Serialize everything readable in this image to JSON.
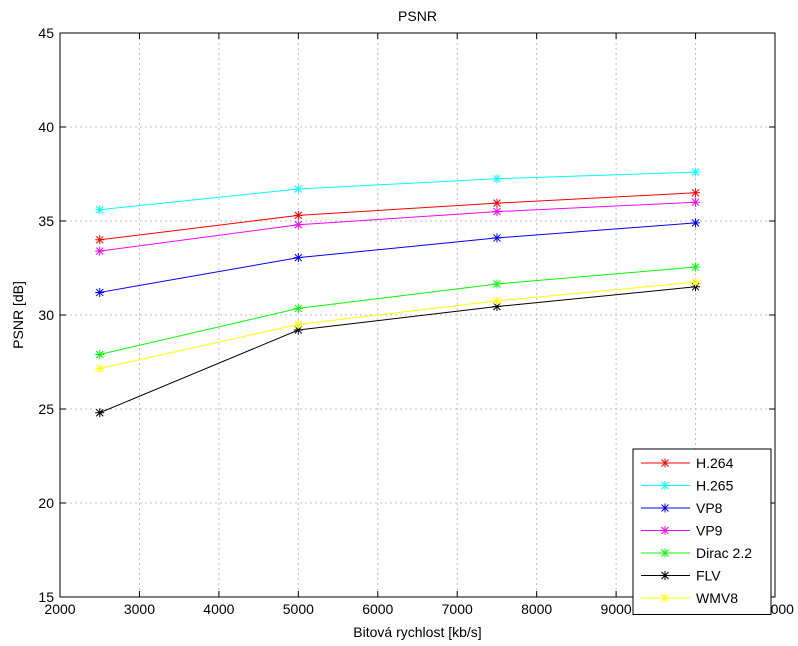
{
  "chart_data": {
    "type": "line",
    "title": "PSNR",
    "xlabel": "Bitová rychlost [kb/s]",
    "ylabel": "PSNR [dB]",
    "xlim": [
      2000,
      11000
    ],
    "ylim": [
      15,
      45
    ],
    "xticks": [
      2000,
      3000,
      4000,
      5000,
      6000,
      7000,
      8000,
      9000,
      10000,
      11000
    ],
    "yticks": [
      15,
      20,
      25,
      30,
      35,
      40,
      45
    ],
    "grid": true,
    "legend_position": "bottom-right",
    "x": [
      2500,
      5000,
      7500,
      10000
    ],
    "series": [
      {
        "name": "H.264",
        "color": "#ff0000",
        "values": [
          34.0,
          35.3,
          35.95,
          36.5
        ]
      },
      {
        "name": "H.265",
        "color": "#00ffff",
        "values": [
          35.6,
          36.7,
          37.25,
          37.6
        ]
      },
      {
        "name": "VP8",
        "color": "#0000ff",
        "values": [
          31.2,
          33.05,
          34.1,
          34.9
        ]
      },
      {
        "name": "VP9",
        "color": "#ff00ff",
        "values": [
          33.4,
          34.8,
          35.5,
          36.0
        ]
      },
      {
        "name": "Dirac 2.2",
        "color": "#00ff00",
        "values": [
          27.9,
          30.35,
          31.65,
          32.55
        ]
      },
      {
        "name": "FLV",
        "color": "#000000",
        "values": [
          24.8,
          29.2,
          30.45,
          31.5
        ]
      },
      {
        "name": "WMV8",
        "color": "#ffff00",
        "values": [
          27.15,
          29.5,
          30.75,
          31.75
        ]
      }
    ]
  }
}
